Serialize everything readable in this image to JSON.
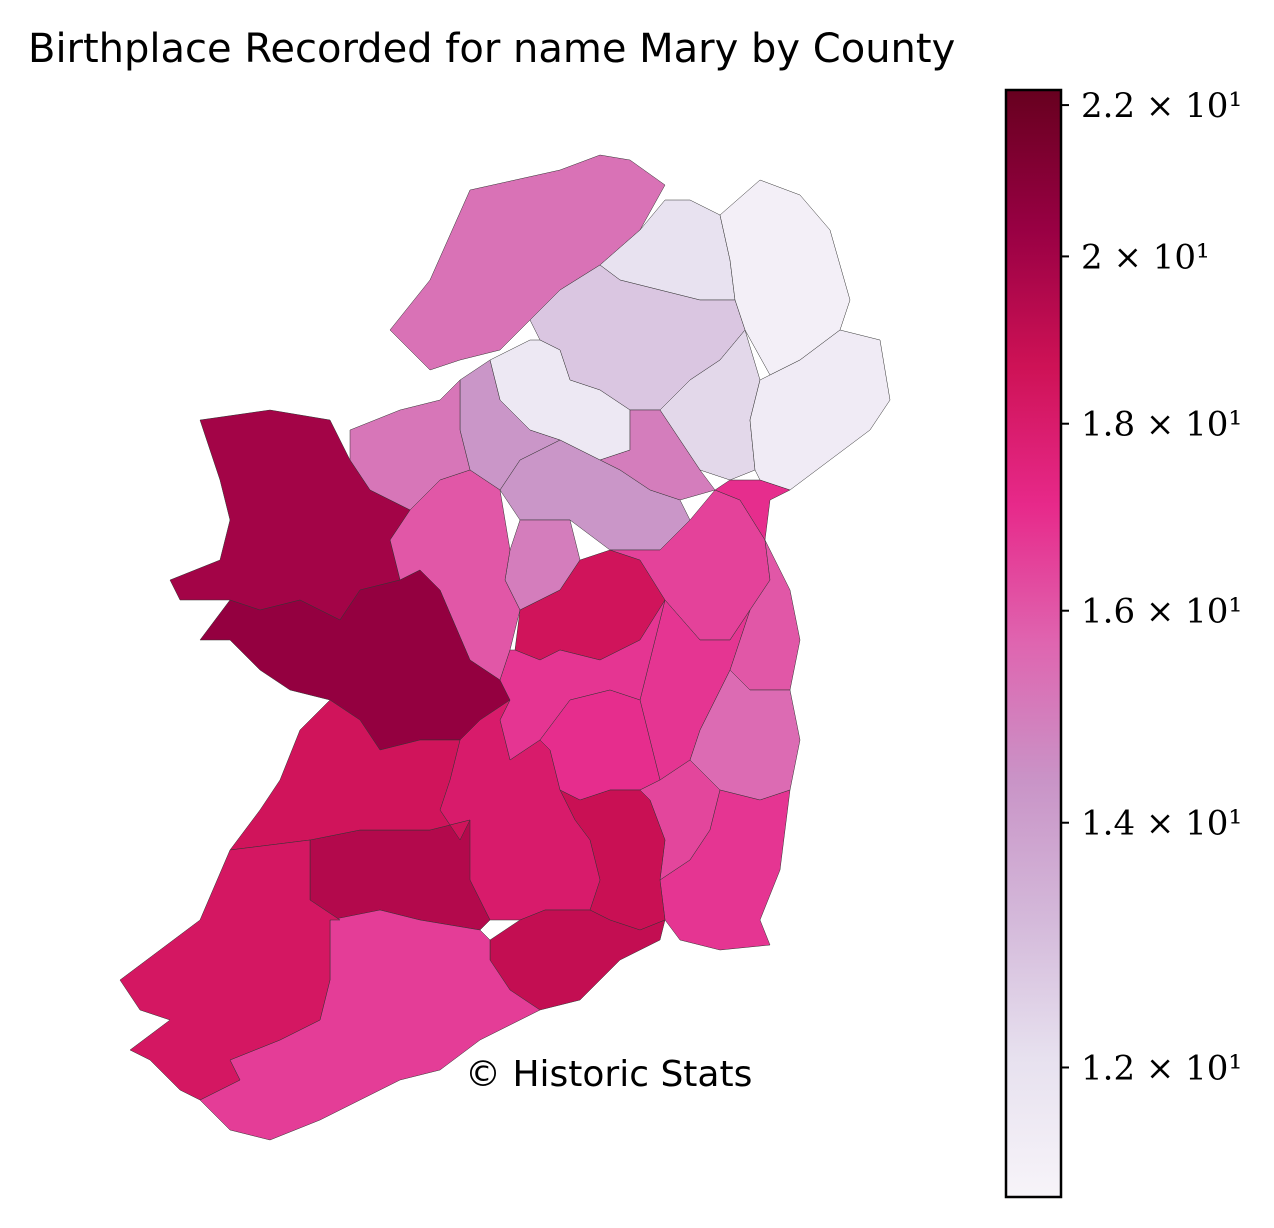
{
  "chart_data": {
    "type": "choropleth",
    "title": "Birthplace Recorded for name Mary by County",
    "annotation": "© Historic Stats",
    "values": [
      15.3,
      12.0,
      11.3,
      12.8,
      11.7,
      12.3,
      11.5,
      15.0,
      14.3,
      14.3,
      15.2,
      15.0,
      16.0,
      20.0,
      20.5,
      18.5,
      16.5,
      17.0,
      16.0,
      15.5,
      16.8,
      16.8,
      17.0,
      16.4,
      16.8,
      18.8,
      18.0,
      19.0,
      19.5,
      18.5,
      16.6,
      18.3
    ],
    "colorbar": {
      "scale": "log",
      "clim": [
        11.06,
        22.21
      ],
      "ticks": [
        {
          "value": 12,
          "label": "1.2 × 10¹"
        },
        {
          "value": 14,
          "label": "1.4 × 10¹"
        },
        {
          "value": 16,
          "label": "1.6 × 10¹"
        },
        {
          "value": 18,
          "label": "1.8 × 10¹"
        },
        {
          "value": 20,
          "label": "2 × 10¹"
        },
        {
          "value": 22,
          "label": "2.2 × 10¹"
        }
      ],
      "colormap": [
        "#f7f4f9",
        "#e7e1ef",
        "#d4b9da",
        "#c994c7",
        "#df65b0",
        "#e7298a",
        "#ce1256",
        "#980043",
        "#67001f"
      ]
    }
  }
}
